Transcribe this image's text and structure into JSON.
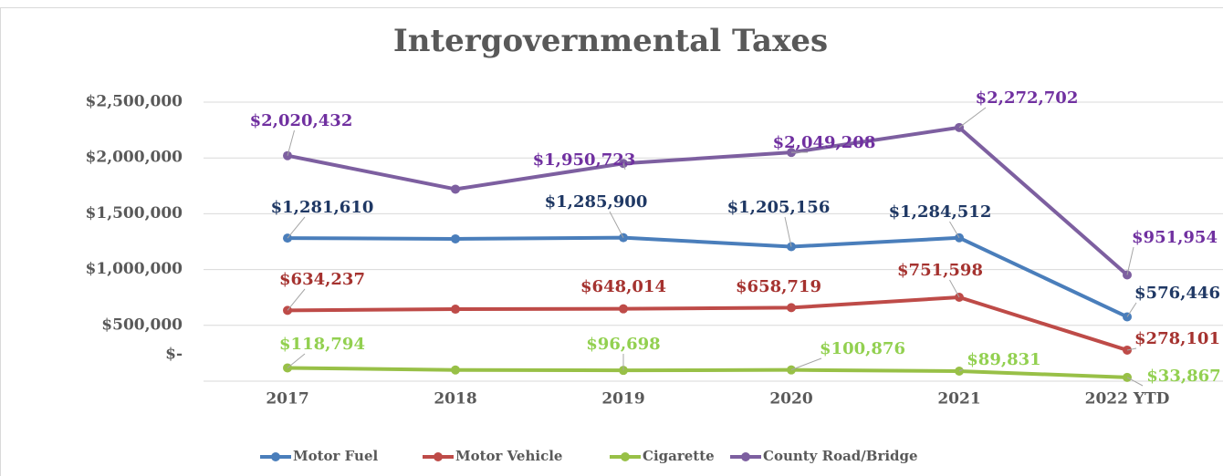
{
  "chart_data": {
    "type": "line",
    "title": "Intergovernmental Taxes",
    "categories": [
      "2017",
      "2018",
      "2019",
      "2020",
      "2021",
      "2022 YTD"
    ],
    "series": [
      {
        "name": "Motor Fuel",
        "color": "#4a7ebb",
        "label_color": "#1f3864",
        "values": [
          1281610,
          1275000,
          1285900,
          1205156,
          1284512,
          576446
        ],
        "value_labels": [
          "$1,281,610",
          null,
          "$1,285,900",
          "$1,205,156",
          "$1,284,512",
          "$576,446"
        ]
      },
      {
        "name": "Motor Vehicle",
        "color": "#be4b48",
        "label_color": "#a5322f",
        "values": [
          634237,
          645000,
          648014,
          658719,
          751598,
          278101
        ],
        "value_labels": [
          "$634,237",
          null,
          "$648,014",
          "$658,719",
          "$751,598",
          "$278,101"
        ]
      },
      {
        "name": "Cigarette",
        "color": "#98c047",
        "label_color": "#92d050",
        "values": [
          118794,
          100000,
          96698,
          100876,
          89831,
          33867
        ],
        "value_labels": [
          "$118,794",
          null,
          "$96,698",
          "$100,876",
          "$89,831",
          "$33,867"
        ]
      },
      {
        "name": "County Road/Bridge",
        "color": "#7d5fa0",
        "label_color": "#7030a0",
        "values": [
          2020432,
          1720000,
          1950723,
          2049208,
          2272702,
          951954
        ],
        "value_labels": [
          "$2,020,432",
          null,
          "$1,950,723",
          "$2,049,208",
          "$2,272,702",
          "$951,954"
        ]
      }
    ],
    "ylim": [
      0,
      2500000
    ],
    "yticks": [
      {
        "value": 0,
        "label": "$-"
      },
      {
        "value": 500000,
        "label": "$500,000"
      },
      {
        "value": 1000000,
        "label": "$1,000,000"
      },
      {
        "value": 1500000,
        "label": "$1,500,000"
      },
      {
        "value": 2000000,
        "label": "$2,000,000"
      },
      {
        "value": 2500000,
        "label": "$2,500,000"
      }
    ],
    "grid": true,
    "legend": "bottom"
  }
}
